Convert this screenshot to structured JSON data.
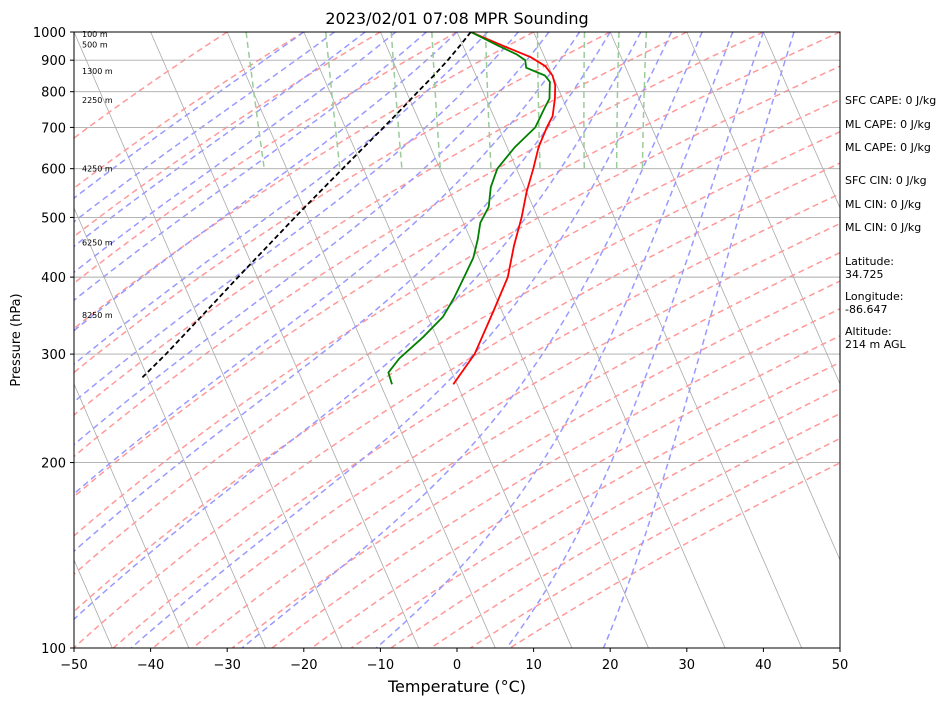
{
  "chart_data": {
    "type": "line",
    "chart_kind": "skew-T log-P sounding",
    "title": "2023/02/01 07:08 MPR Sounding",
    "xlabel": "Temperature (°C)",
    "ylabel": "Pressure (hPa)",
    "xlim": [
      -50,
      50
    ],
    "ylim": [
      1000,
      100
    ],
    "y_scale": "log",
    "skew": "isotherms slanted ~45°",
    "x_ticks": [
      "−50",
      "−40",
      "−30",
      "−20",
      "−10",
      "0",
      "10",
      "20",
      "30",
      "40",
      "50"
    ],
    "y_ticks": [
      "100",
      "200",
      "300",
      "400",
      "500",
      "600",
      "700",
      "800",
      "900",
      "1000"
    ],
    "grid": true,
    "height_labels": [
      {
        "p": 993,
        "text": "100 m"
      },
      {
        "p": 955,
        "text": "500 m"
      },
      {
        "p": 865,
        "text": "1300 m"
      },
      {
        "p": 775,
        "text": "2250 m"
      },
      {
        "p": 600,
        "text": "4250 m"
      },
      {
        "p": 455,
        "text": "6250 m"
      },
      {
        "p": 347,
        "text": "8250 m"
      }
    ],
    "series": [
      {
        "role": "temperature",
        "color": "#ff0000",
        "points": [
          [
            1.8,
            1000
          ],
          [
            5.2,
            950
          ],
          [
            8.2,
            910
          ],
          [
            9.6,
            880
          ],
          [
            10.0,
            850
          ],
          [
            9.8,
            820
          ],
          [
            9.0,
            780
          ],
          [
            7.7,
            730
          ],
          [
            6.3,
            700
          ],
          [
            4.1,
            650
          ],
          [
            2.2,
            600
          ],
          [
            0.0,
            550
          ],
          [
            -2.1,
            500
          ],
          [
            -4.7,
            450
          ],
          [
            -7.3,
            400
          ],
          [
            -11.3,
            350
          ],
          [
            -16.0,
            300
          ],
          [
            -20.5,
            268
          ]
        ]
      },
      {
        "role": "dewpoint",
        "color": "#008000",
        "points": [
          [
            1.8,
            1000
          ],
          [
            4.6,
            950
          ],
          [
            6.5,
            920
          ],
          [
            7.3,
            900
          ],
          [
            7.0,
            875
          ],
          [
            9.0,
            850
          ],
          [
            9.3,
            830
          ],
          [
            8.7,
            800
          ],
          [
            8.3,
            780
          ],
          [
            7.0,
            750
          ],
          [
            4.8,
            700
          ],
          [
            1.0,
            650
          ],
          [
            -2.5,
            600
          ],
          [
            -4.4,
            560
          ],
          [
            -5.8,
            520
          ],
          [
            -7.8,
            490
          ],
          [
            -9.1,
            460
          ],
          [
            -10.7,
            430
          ],
          [
            -13.0,
            400
          ],
          [
            -15.5,
            370
          ],
          [
            -18.0,
            345
          ],
          [
            -21.7,
            320
          ],
          [
            -26.1,
            295
          ],
          [
            -28.3,
            280
          ],
          [
            -28.5,
            268
          ]
        ]
      },
      {
        "role": "parcel",
        "color": "#000000",
        "style": "dashed",
        "points": [
          [
            1.8,
            1000
          ],
          [
            -0.4,
            950
          ],
          [
            -2.8,
            900
          ],
          [
            -5.5,
            850
          ],
          [
            -8.5,
            800
          ],
          [
            -11.6,
            750
          ],
          [
            -15.0,
            700
          ],
          [
            -18.7,
            650
          ],
          [
            -22.7,
            600
          ],
          [
            -27.0,
            550
          ],
          [
            -31.7,
            500
          ],
          [
            -36.8,
            450
          ],
          [
            -42.5,
            400
          ],
          [
            -48.9,
            350
          ],
          [
            -56.3,
            300
          ],
          [
            -60.7,
            275
          ]
        ]
      }
    ],
    "background_lines": {
      "dry_adiabats_color": "#ff9999",
      "moist_adiabats_color": "#9999ff",
      "mixing_ratio_color": "#99cc99",
      "isotherm_color": "#aaaaaa"
    }
  },
  "sidebar": {
    "sfc_cape": "SFC CAPE: 0 J/kg",
    "ml_cape_1": "ML CAPE: 0 J/kg",
    "ml_cape_2": "ML CAPE: 0 J/kg",
    "sfc_cin": "SFC CIN: 0 J/kg",
    "ml_cin_1": "ML CIN: 0 J/kg",
    "ml_cin_2": "ML CIN: 0 J/kg",
    "latitude": "Latitude:\n34.725",
    "longitude": "Longitude:\n-86.647",
    "altitude": "Altitude:\n214 m AGL"
  }
}
